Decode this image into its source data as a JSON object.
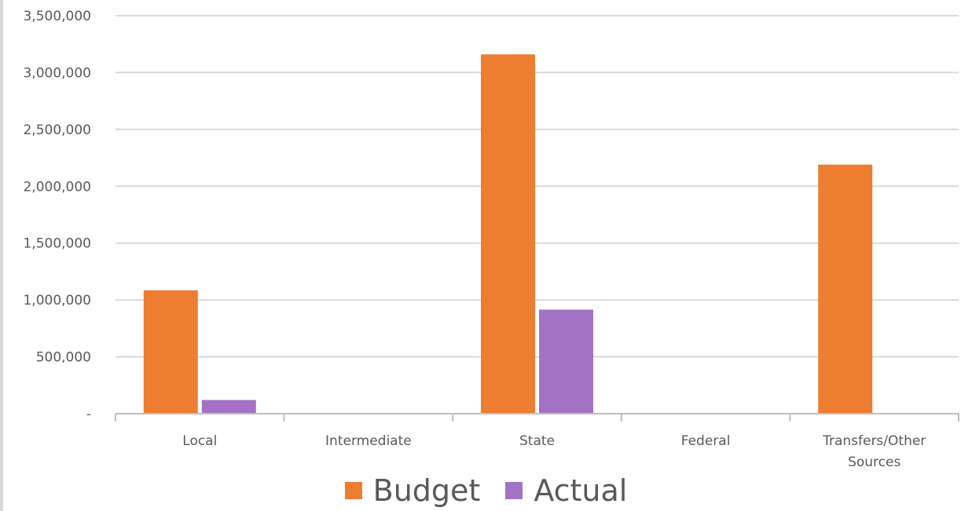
{
  "chart_data": {
    "type": "bar",
    "categories": [
      [
        "Local"
      ],
      [
        "Intermediate"
      ],
      [
        "State"
      ],
      [
        "Federal"
      ],
      [
        "Transfers/Other",
        "Sources"
      ]
    ],
    "series": [
      {
        "name": "Budget",
        "color": "#ed7d31",
        "values": [
          1085000,
          0,
          3160000,
          0,
          2190000
        ]
      },
      {
        "name": "Actual",
        "color": "#a472c4",
        "values": [
          120000,
          0,
          915000,
          0,
          0
        ]
      }
    ],
    "ylim": [
      0,
      3500000
    ],
    "yticks": [
      {
        "value": 0,
        "label": "-"
      },
      {
        "value": 500000,
        "label": "500,000"
      },
      {
        "value": 1000000,
        "label": "1,000,000"
      },
      {
        "value": 1500000,
        "label": "1,500,000"
      },
      {
        "value": 2000000,
        "label": "2,000,000"
      },
      {
        "value": 2500000,
        "label": "2,500,000"
      },
      {
        "value": 3000000,
        "label": "3,000,000"
      },
      {
        "value": 3500000,
        "label": "3,500,000"
      }
    ],
    "grid": true,
    "legend_position": "bottom",
    "title": "",
    "xlabel": "",
    "ylabel": ""
  }
}
